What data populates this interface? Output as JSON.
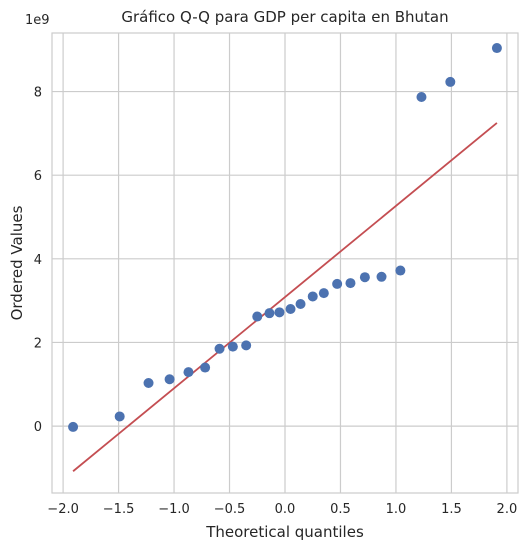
{
  "chart_data": {
    "type": "scatter",
    "title": "Gráfico Q-Q para GDP per capita en Bhutan",
    "xlabel": "Theoretical quantiles",
    "ylabel": "Ordered Values",
    "y_offset_text": "1e9",
    "xlim": [
      -2.1,
      2.1
    ],
    "ylim": [
      -1.6,
      9.4
    ],
    "xticks": [
      -2.0,
      -1.5,
      -1.0,
      -0.5,
      0.0,
      0.5,
      1.0,
      1.5,
      2.0
    ],
    "xtick_labels": [
      "−2.0",
      "−1.5",
      "−1.0",
      "−0.5",
      "0.0",
      "0.5",
      "1.0",
      "1.5",
      "2.0"
    ],
    "yticks": [
      0,
      2,
      4,
      6,
      8
    ],
    "ytick_labels": [
      "0",
      "2",
      "4",
      "6",
      "8"
    ],
    "grid": true,
    "series": [
      {
        "kind": "points",
        "color": "#4c72b0",
        "x": [
          -1.91,
          -1.49,
          -1.23,
          -1.04,
          -0.87,
          -0.72,
          -0.59,
          -0.47,
          -0.35,
          -0.25,
          -0.14,
          -0.05,
          0.05,
          0.14,
          0.25,
          0.35,
          0.47,
          0.59,
          0.72,
          0.87,
          1.04,
          1.23,
          1.49,
          1.91
        ],
        "y": [
          -0.02,
          0.23,
          1.03,
          1.12,
          1.29,
          1.4,
          1.85,
          1.9,
          1.93,
          2.62,
          2.7,
          2.72,
          2.8,
          2.92,
          3.1,
          3.18,
          3.4,
          3.42,
          3.56,
          3.57,
          3.72,
          7.87,
          8.23,
          9.04
        ]
      },
      {
        "kind": "fit-line",
        "color": "#c44e52",
        "x": [
          -1.91,
          1.91
        ],
        "y": [
          -1.08,
          7.25
        ]
      }
    ]
  }
}
